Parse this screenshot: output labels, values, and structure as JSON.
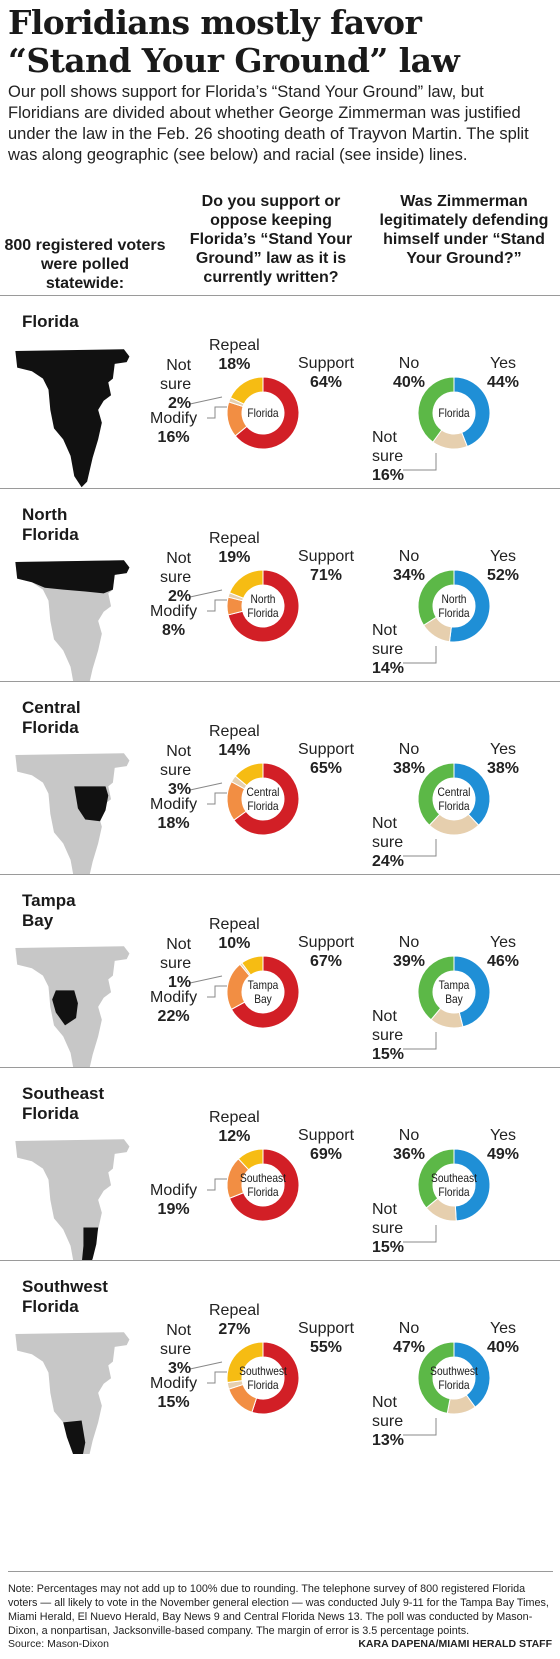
{
  "title": "Floridians mostly favor “Stand Your Ground” law",
  "dek": "Our poll shows support for Florida’s “Stand Your Ground” law, but Floridians are divided about whether George Zimmerman was justified under the law in the Feb. 26 shooting death of Trayvon Martin. The split was along geographic (see below) and racial (see inside) lines.",
  "col_headers": {
    "sample": "800 registered voters were polled statewide:",
    "q1": "Do you support or oppose keeping Florida’s “Stand Your Ground” law as it is currently written?",
    "q2": "Was Zimmerman legitimately defending himself under “Stand Your Ground?”"
  },
  "colors": {
    "support": "#d21f26",
    "repeal": "#f6bc13",
    "modify": "#f28e43",
    "notsure": "#e6cfae",
    "yes": "#1f8fd6",
    "no": "#5cb847",
    "map_active": "#111111",
    "map_inactive": "#c7c7c7"
  },
  "labels": {
    "support": "Support",
    "repeal": "Repeal",
    "modify": "Modify",
    "not": "Not",
    "sure": "sure",
    "yes": "Yes",
    "no": "No"
  },
  "chart_data": [
    {
      "type": "pie",
      "region": "Florida",
      "center": [
        "Florida"
      ],
      "name_lines": [
        "Florida"
      ],
      "highlight": "all",
      "q1": {
        "support": 64,
        "repeal": 18,
        "notsure": 2,
        "modify": 16
      },
      "q2": {
        "yes": 44,
        "no": 40,
        "notsure": 16
      }
    },
    {
      "type": "pie",
      "region": "North Florida",
      "center": [
        "North",
        "Florida"
      ],
      "name_lines": [
        "North",
        "Florida"
      ],
      "highlight": "north",
      "q1": {
        "support": 71,
        "repeal": 19,
        "notsure": 2,
        "modify": 8
      },
      "q2": {
        "yes": 52,
        "no": 34,
        "notsure": 14
      }
    },
    {
      "type": "pie",
      "region": "Central Florida",
      "center": [
        "Central",
        "Florida"
      ],
      "name_lines": [
        "Central",
        "Florida"
      ],
      "highlight": "central",
      "q1": {
        "support": 65,
        "repeal": 14,
        "notsure": 3,
        "modify": 18
      },
      "q2": {
        "yes": 38,
        "no": 38,
        "notsure": 24
      }
    },
    {
      "type": "pie",
      "region": "Tampa Bay",
      "center": [
        "Tampa",
        "Bay"
      ],
      "name_lines": [
        "Tampa",
        "Bay"
      ],
      "highlight": "tampa",
      "q1": {
        "support": 67,
        "repeal": 10,
        "notsure": 1,
        "modify": 22
      },
      "q2": {
        "yes": 46,
        "no": 39,
        "notsure": 15
      }
    },
    {
      "type": "pie",
      "region": "Southeast Florida",
      "center": [
        "Southeast",
        "Florida"
      ],
      "name_lines": [
        "Southeast",
        "Florida"
      ],
      "highlight": "southeast",
      "q1": {
        "support": 69,
        "repeal": 12,
        "modify": 19
      },
      "q2": {
        "yes": 49,
        "no": 36,
        "notsure": 15
      }
    },
    {
      "type": "pie",
      "region": "Southwest Florida",
      "center": [
        "Southwest",
        "Florida"
      ],
      "name_lines": [
        "Southwest",
        "Florida"
      ],
      "highlight": "southwest",
      "q1": {
        "support": 55,
        "repeal": 27,
        "notsure": 3,
        "modify": 15
      },
      "q2": {
        "yes": 40,
        "no": 47,
        "notsure": 13
      }
    }
  ],
  "note": "Note: Percentages may not add up to 100% due to rounding. The telephone survey of 800 registered Florida voters — all likely to vote in the November general election — was conducted July 9-11 for the Tampa Bay Times, Miami Herald, El Nuevo Herald, Bay News 9 and Central Florida News 13. The poll was conducted by Mason-Dixon, a nonpartisan, Jacksonville-based company. The margin of error is 3.5 percentage points.",
  "source": "Source: Mason-Dixon",
  "credit": "KARA DAPENA/MIAMI HERALD STAFF"
}
